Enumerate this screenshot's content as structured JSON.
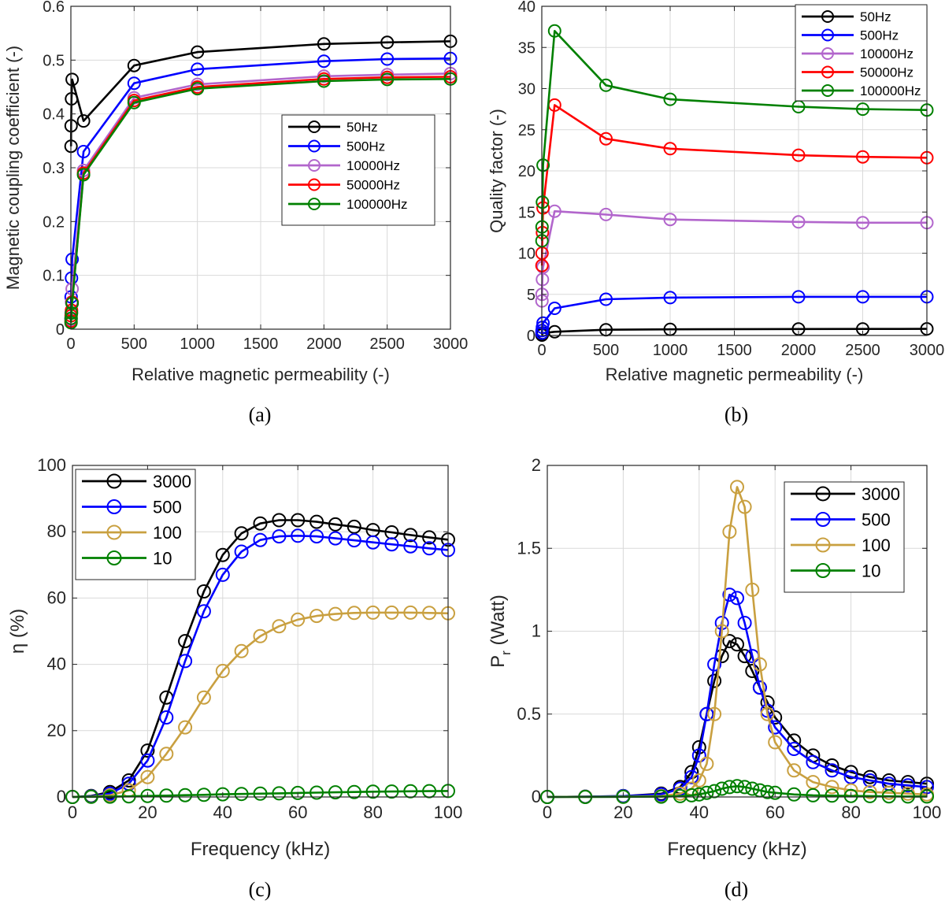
{
  "colors": {
    "black": "#000000",
    "blue": "#0000ff",
    "purple": "#b266cc",
    "red": "#ff0000",
    "green": "#008000",
    "gold": "#c9a040"
  },
  "chart_data": [
    {
      "id": "a",
      "type": "line",
      "caption": "(a)",
      "xlabel": "Relative magnetic permeability (-)",
      "ylabel": "Magnetic coupling coefficient (-)",
      "xlim": [
        0,
        3000
      ],
      "ylim": [
        0,
        0.6
      ],
      "xticks": [
        0,
        500,
        1000,
        1500,
        2000,
        2500,
        3000
      ],
      "yticks": [
        0,
        0.1,
        0.2,
        0.3,
        0.4,
        0.5,
        0.6
      ],
      "ytick_labels": [
        "0",
        "0.1",
        "0.2",
        "0.3",
        "0.4",
        "0.5",
        "0.6"
      ],
      "grid": true,
      "legend_position": "center-right",
      "x": [
        1,
        2,
        5,
        10,
        100,
        500,
        1000,
        2000,
        2500,
        3000
      ],
      "series": [
        {
          "name": "50Hz",
          "color": "#000000",
          "values": [
            0.34,
            0.378,
            0.428,
            0.464,
            0.387,
            0.49,
            0.515,
            0.53,
            0.533,
            0.535
          ]
        },
        {
          "name": "500Hz",
          "color": "#0000ff",
          "values": [
            0.02,
            0.06,
            0.095,
            0.13,
            0.33,
            0.457,
            0.483,
            0.498,
            0.502,
            0.503
          ]
        },
        {
          "name": "10000Hz",
          "color": "#b266cc",
          "values": [
            0.018,
            0.03,
            0.05,
            0.075,
            0.295,
            0.43,
            0.455,
            0.47,
            0.473,
            0.475
          ]
        },
        {
          "name": "50000Hz",
          "color": "#ff0000",
          "values": [
            0.015,
            0.025,
            0.035,
            0.05,
            0.29,
            0.425,
            0.45,
            0.465,
            0.468,
            0.469
          ]
        },
        {
          "name": "100000Hz",
          "color": "#008000",
          "values": [
            0.012,
            0.02,
            0.03,
            0.048,
            0.287,
            0.421,
            0.447,
            0.461,
            0.464,
            0.465
          ]
        }
      ]
    },
    {
      "id": "b",
      "type": "line",
      "caption": "(b)",
      "xlabel": "Relative magnetic permeability (-)",
      "ylabel": "Quality factor (-)",
      "xlim": [
        0,
        3000
      ],
      "ylim": [
        0,
        40
      ],
      "xticks": [
        0,
        500,
        1000,
        1500,
        2000,
        2500,
        3000
      ],
      "yticks": [
        0,
        5,
        10,
        15,
        20,
        25,
        30,
        35,
        40
      ],
      "ytick_labels": [
        "0",
        "5",
        "10",
        "15",
        "20",
        "25",
        "30",
        "35",
        "40"
      ],
      "grid": true,
      "legend_position": "top-right",
      "x": [
        1,
        2,
        5,
        10,
        100,
        500,
        1000,
        2000,
        2500,
        3000
      ],
      "series": [
        {
          "name": "50Hz",
          "color": "#000000",
          "values": [
            0.05,
            0.1,
            0.2,
            0.3,
            0.45,
            0.7,
            0.75,
            0.78,
            0.79,
            0.8
          ]
        },
        {
          "name": "500Hz",
          "color": "#0000ff",
          "values": [
            0.3,
            0.6,
            1.0,
            1.5,
            3.3,
            4.4,
            4.6,
            4.7,
            4.7,
            4.7
          ]
        },
        {
          "name": "10000Hz",
          "color": "#b266cc",
          "values": [
            4.2,
            5.0,
            6.8,
            8.3,
            15.1,
            14.7,
            14.1,
            13.8,
            13.7,
            13.7
          ]
        },
        {
          "name": "50000Hz",
          "color": "#ff0000",
          "values": [
            8.5,
            10.0,
            12.5,
            15.5,
            28.0,
            23.9,
            22.7,
            21.9,
            21.7,
            21.6
          ]
        },
        {
          "name": "100000Hz",
          "color": "#008000",
          "values": [
            11.5,
            13.2,
            16.2,
            20.7,
            37.0,
            30.4,
            28.7,
            27.8,
            27.5,
            27.4
          ]
        }
      ]
    },
    {
      "id": "c",
      "type": "line",
      "caption": "(c)",
      "xlabel": "Frequency (kHz)",
      "ylabel": "η (%)",
      "xlim": [
        0,
        100
      ],
      "ylim": [
        0,
        100
      ],
      "xticks": [
        0,
        20,
        40,
        60,
        80,
        100
      ],
      "yticks": [
        0,
        20,
        40,
        60,
        80,
        100
      ],
      "ytick_labels": [
        "0",
        "20",
        "40",
        "60",
        "80",
        "100"
      ],
      "grid": true,
      "legend_position": "top-left",
      "x": [
        0,
        5,
        10,
        15,
        20,
        25,
        30,
        35,
        40,
        45,
        50,
        55,
        60,
        65,
        70,
        75,
        80,
        85,
        90,
        95,
        100
      ],
      "series": [
        {
          "name": "3000",
          "color": "#000000",
          "values": [
            0,
            0.3,
            1.5,
            5,
            14,
            30,
            47,
            62,
            73,
            79.5,
            82.5,
            83.5,
            83.5,
            83,
            82.2,
            81.5,
            80.5,
            79.8,
            79,
            78.3,
            77.6
          ]
        },
        {
          "name": "500",
          "color": "#0000ff",
          "values": [
            0,
            0.2,
            1,
            4,
            11,
            24,
            41,
            56,
            67,
            74,
            77.5,
            78.6,
            78.8,
            78.6,
            78,
            77.4,
            76.8,
            76.2,
            75.6,
            75,
            74.5
          ]
        },
        {
          "name": "100",
          "color": "#c9a040",
          "values": [
            0,
            0.1,
            0.5,
            2,
            6,
            13,
            21,
            30,
            38,
            44,
            48.5,
            51.5,
            53.5,
            54.6,
            55.2,
            55.5,
            55.6,
            55.6,
            55.6,
            55.5,
            55.4
          ]
        },
        {
          "name": "10",
          "color": "#008000",
          "values": [
            0,
            0.05,
            0.1,
            0.2,
            0.3,
            0.4,
            0.55,
            0.65,
            0.8,
            0.9,
            1.0,
            1.1,
            1.2,
            1.3,
            1.4,
            1.5,
            1.6,
            1.65,
            1.7,
            1.75,
            1.8
          ]
        }
      ]
    },
    {
      "id": "d",
      "type": "line",
      "caption": "(d)",
      "xlabel": "Frequency (kHz)",
      "ylabel": "P",
      "ylabel_sub": "r",
      "ylabel_unit": " (Watt)",
      "xlim": [
        0,
        100
      ],
      "ylim": [
        0,
        2
      ],
      "xticks": [
        0,
        20,
        40,
        60,
        80,
        100
      ],
      "yticks": [
        0,
        0.5,
        1,
        1.5,
        2
      ],
      "ytick_labels": [
        "0",
        "0.5",
        "1",
        "1.5",
        "2"
      ],
      "grid": true,
      "legend_position": "top-right",
      "x": [
        0,
        10,
        20,
        30,
        35,
        38,
        40,
        42,
        44,
        46,
        48,
        50,
        52,
        54,
        56,
        58,
        60,
        65,
        70,
        75,
        80,
        85,
        90,
        95,
        100
      ],
      "series": [
        {
          "name": "3000",
          "color": "#000000",
          "values": [
            0,
            0.002,
            0.005,
            0.02,
            0.06,
            0.15,
            0.3,
            0.5,
            0.7,
            0.85,
            0.94,
            0.92,
            0.85,
            0.76,
            0.66,
            0.57,
            0.48,
            0.34,
            0.25,
            0.19,
            0.15,
            0.12,
            0.1,
            0.09,
            0.08
          ]
        },
        {
          "name": "500",
          "color": "#0000ff",
          "values": [
            0,
            0.002,
            0.005,
            0.015,
            0.05,
            0.12,
            0.25,
            0.5,
            0.8,
            1.05,
            1.22,
            1.2,
            1.05,
            0.85,
            0.66,
            0.52,
            0.42,
            0.29,
            0.21,
            0.16,
            0.12,
            0.1,
            0.08,
            0.07,
            0.06
          ]
        },
        {
          "name": "100",
          "color": "#c9a040",
          "values": [
            0,
            0.001,
            0.002,
            0.005,
            0.02,
            0.05,
            0.1,
            0.2,
            0.5,
            1.0,
            1.6,
            1.87,
            1.75,
            1.25,
            0.8,
            0.5,
            0.33,
            0.16,
            0.09,
            0.06,
            0.04,
            0.03,
            0.025,
            0.02,
            0.015
          ]
        },
        {
          "name": "10",
          "color": "#008000",
          "values": [
            0,
            0.0,
            0.001,
            0.002,
            0.005,
            0.01,
            0.015,
            0.025,
            0.035,
            0.05,
            0.06,
            0.065,
            0.06,
            0.05,
            0.04,
            0.03,
            0.025,
            0.015,
            0.01,
            0.008,
            0.006,
            0.005,
            0.004,
            0.003,
            0.003
          ]
        }
      ]
    }
  ]
}
